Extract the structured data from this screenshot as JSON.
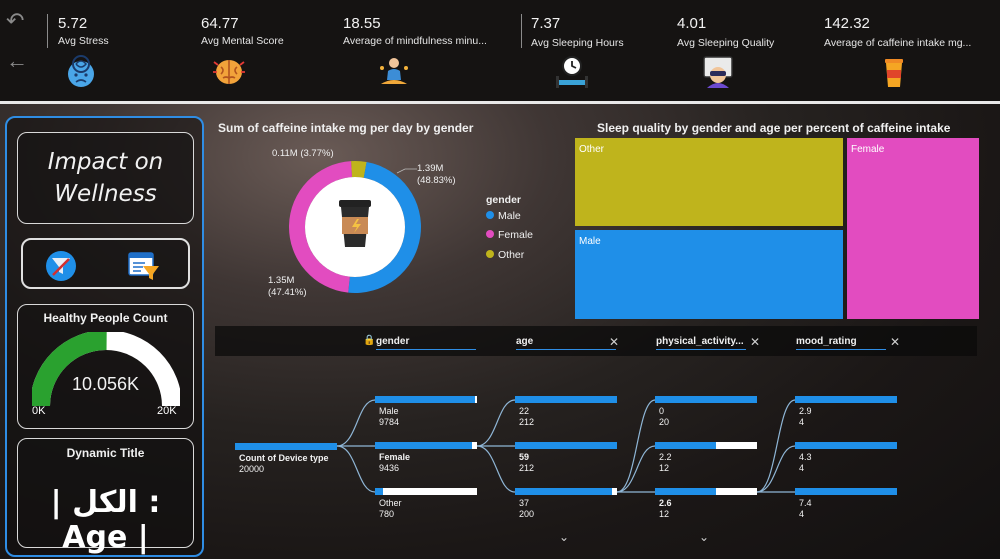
{
  "kpis": [
    {
      "value": "5.72",
      "label": "Avg Stress",
      "icon": "stressed-head-icon"
    },
    {
      "value": "64.77",
      "label": "Avg Mental Score",
      "icon": "brain-icon"
    },
    {
      "value": "18.55",
      "label": "Average of mindfulness minu...",
      "icon": "meditation-icon"
    },
    {
      "value": "7.37",
      "label": "Avg Sleeping Hours",
      "icon": "alarm-bed-icon"
    },
    {
      "value": "4.01",
      "label": "Avg Sleeping Quality",
      "icon": "sleep-mask-icon"
    },
    {
      "value": "142.32",
      "label": "Average of caffeine intake mg...",
      "icon": "coffee-cup-icon"
    }
  ],
  "left": {
    "impact_title": "Impact on Wellness",
    "healthy_title": "Healthy People Count",
    "healthy_value": "10.056K",
    "gauge_min": "0K",
    "gauge_max": "20K",
    "gauge_fraction": 0.503,
    "dynamic_title": "Dynamic Title",
    "dynamic_text": "الكل : Age |",
    "dynamic_prefix": "|"
  },
  "donut": {
    "title": "Sum of caffeine intake mg per day by gender",
    "legend_title": "gender",
    "slices": [
      {
        "name": "Male",
        "value": 1.39,
        "percent": 48.83,
        "color": "#1f8fe8",
        "label": "1.39M",
        "pct_label": "(48.83%)"
      },
      {
        "name": "Female",
        "value": 1.35,
        "percent": 47.41,
        "color": "#e24cc0",
        "label": "1.35M",
        "pct_label": "(47.41%)"
      },
      {
        "name": "Other",
        "value": 0.11,
        "percent": 3.77,
        "color": "#bfb41c",
        "label": "0.11M",
        "pct_label": "(3.77%)"
      }
    ]
  },
  "treemap": {
    "title": "Sleep quality by gender and age per percent of caffeine intake",
    "items": [
      {
        "name": "Other",
        "color": "#bfb41c"
      },
      {
        "name": "Male",
        "color": "#1f8fe8"
      },
      {
        "name": "Female",
        "color": "#e24cc0"
      }
    ]
  },
  "decomp": {
    "headers": [
      "gender",
      "age",
      "physical_activity...",
      "mood_rating"
    ],
    "root": {
      "label": "Count of Device type",
      "value": "20000"
    },
    "col1": [
      {
        "label": "Male",
        "value": "9784",
        "fill": 0.98
      },
      {
        "label": "Female",
        "value": "9436",
        "fill": 0.95,
        "bold": true
      },
      {
        "label": "Other",
        "value": "780",
        "fill": 0.08
      }
    ],
    "col2": [
      {
        "label": "22",
        "value": "212",
        "fill": 1.0
      },
      {
        "label": "59",
        "value": "212",
        "fill": 1.0,
        "bold": true
      },
      {
        "label": "37",
        "value": "200",
        "fill": 0.95
      }
    ],
    "col3": [
      {
        "label": "0",
        "value": "20",
        "fill": 1.0
      },
      {
        "label": "2.2",
        "value": "12",
        "fill": 0.6
      },
      {
        "label": "2.6",
        "value": "12",
        "fill": 0.6,
        "bold": true
      }
    ],
    "col4": [
      {
        "label": "2.9",
        "value": "4",
        "fill": 1.0
      },
      {
        "label": "4.3",
        "value": "4",
        "fill": 1.0
      },
      {
        "label": "7.4",
        "value": "4",
        "fill": 1.0
      }
    ]
  }
}
